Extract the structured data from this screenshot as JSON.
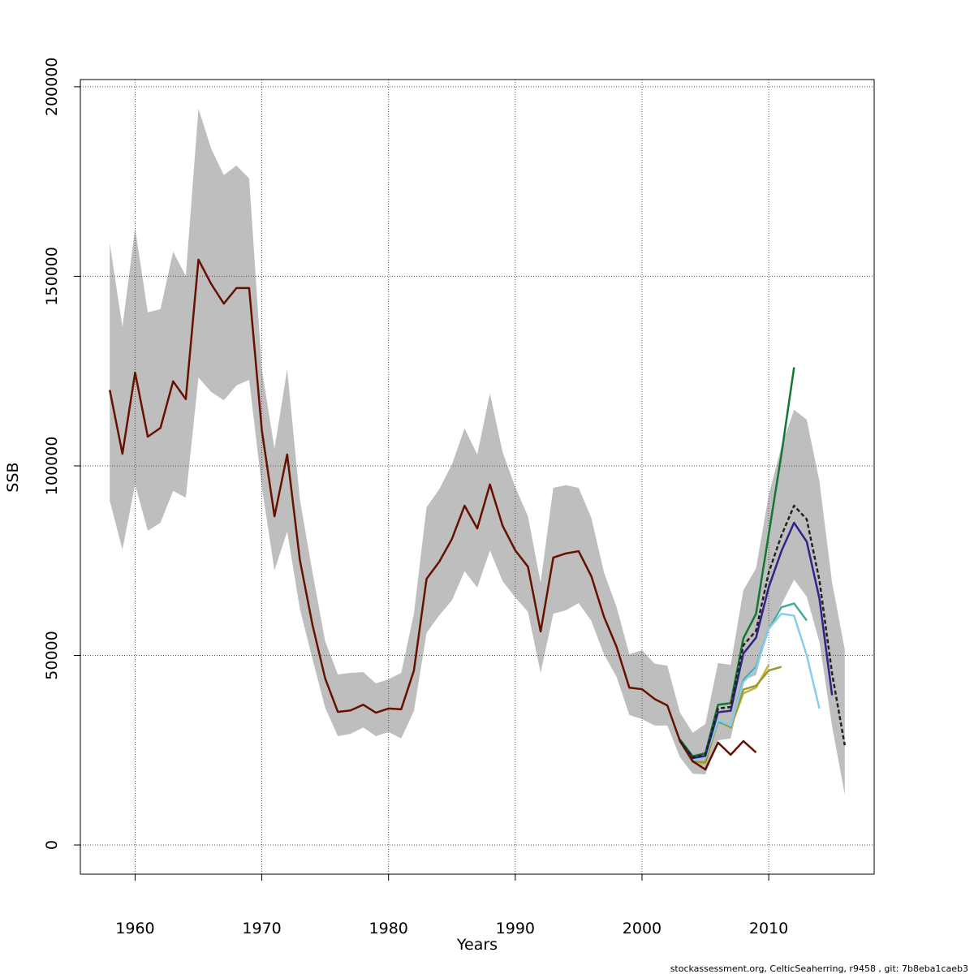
{
  "chart_data": {
    "type": "line",
    "xlabel": "Years",
    "ylabel": "SSB",
    "footnote": "stockassessment.org, CelticSeaherring, r9458 , git: 7b8eba1caeb3",
    "xlim": [
      1955.68,
      2018.32
    ],
    "ylim": [
      -7700,
      201900
    ],
    "xticks": [
      1960,
      1970,
      1980,
      1990,
      2000,
      2010
    ],
    "yticks": [
      0,
      50000,
      100000,
      150000,
      200000
    ],
    "grid": true,
    "band": {
      "color": "#bebebe",
      "x": [
        1958,
        1959,
        1960,
        1961,
        1962,
        1963,
        1964,
        1965,
        1966,
        1967,
        1968,
        1969,
        1970,
        1971,
        1972,
        1973,
        1974,
        1975,
        1976,
        1977,
        1978,
        1979,
        1980,
        1981,
        1982,
        1983,
        1984,
        1985,
        1986,
        1987,
        1988,
        1989,
        1990,
        1991,
        1992,
        1993,
        1994,
        1995,
        1996,
        1997,
        1998,
        1999,
        2000,
        2001,
        2002,
        2003,
        2004,
        2005,
        2006,
        2007,
        2008,
        2009,
        2010,
        2011,
        2012,
        2013,
        2014,
        2015,
        2016
      ],
      "upper": [
        158700,
        136600,
        162700,
        140500,
        141300,
        156500,
        150100,
        194200,
        183700,
        176700,
        179200,
        175800,
        125500,
        104500,
        125500,
        91200,
        71900,
        53700,
        45000,
        45400,
        45600,
        42600,
        43700,
        45400,
        61000,
        89100,
        93800,
        100400,
        109900,
        103000,
        119100,
        103600,
        94400,
        86700,
        69200,
        94200,
        94900,
        94200,
        86300,
        71900,
        62700,
        50300,
        51400,
        47800,
        47300,
        34900,
        29600,
        31900,
        48000,
        47500,
        67200,
        73000,
        92300,
        105100,
        114800,
        112200,
        95900,
        69200,
        51600
      ],
      "lower": [
        90800,
        77900,
        95100,
        82900,
        85000,
        93400,
        91600,
        123300,
        119500,
        117300,
        121200,
        122700,
        94400,
        72400,
        82700,
        62300,
        49000,
        36200,
        28700,
        29300,
        31000,
        28700,
        29800,
        28100,
        35300,
        55900,
        60600,
        64500,
        72200,
        67900,
        77700,
        69600,
        65300,
        61500,
        45400,
        61000,
        61900,
        63800,
        59100,
        50300,
        44300,
        34300,
        33200,
        31500,
        31500,
        23100,
        18800,
        18600,
        27600,
        28100,
        43500,
        44800,
        57600,
        63400,
        70000,
        65500,
        53500,
        31300,
        13300
      ]
    },
    "series": [
      {
        "color": "#c9b33a",
        "x": [
          2003,
          2004,
          2005,
          2006,
          2007,
          2008,
          2009,
          2010
        ],
        "values": [
          27400,
          21800,
          21500,
          32500,
          31000,
          40000,
          41500,
          47500
        ]
      },
      {
        "color": "#999933",
        "x": [
          2003,
          2004,
          2005,
          2006,
          2007,
          2008,
          2009,
          2010,
          2011
        ],
        "values": [
          27400,
          22000,
          21800,
          33000,
          31000,
          41000,
          42000,
          46000,
          47000
        ]
      },
      {
        "color": "#117733",
        "x": [
          2003,
          2004,
          2005,
          2006,
          2007,
          2008,
          2009,
          2010,
          2011,
          2012
        ],
        "values": [
          27800,
          23400,
          24200,
          37000,
          37400,
          54500,
          61000,
          82000,
          103000,
          126000
        ]
      },
      {
        "color": "#44aa99",
        "x": [
          2003,
          2004,
          2005,
          2006,
          2007,
          2008,
          2009,
          2010,
          2011,
          2012,
          2013
        ],
        "values": [
          27400,
          22800,
          23500,
          32500,
          31500,
          43500,
          47000,
          57000,
          62700,
          63700,
          59200
        ]
      },
      {
        "color": "#88ccee",
        "x": [
          2003,
          2004,
          2005,
          2006,
          2007,
          2008,
          2009,
          2010,
          2011,
          2012,
          2013,
          2014
        ],
        "values": [
          27400,
          22500,
          23000,
          33000,
          31500,
          43000,
          46500,
          57000,
          61000,
          60500,
          50000,
          36000
        ]
      },
      {
        "color": "#332288",
        "x": [
          2003,
          2004,
          2005,
          2006,
          2007,
          2008,
          2009,
          2010,
          2011,
          2012,
          2013,
          2014,
          2015
        ],
        "values": [
          27400,
          22900,
          23500,
          35000,
          35400,
          50500,
          54700,
          68000,
          77500,
          85000,
          80000,
          65000,
          39500
        ]
      },
      {
        "color": "#661100",
        "x": [
          1958,
          1959,
          1960,
          1961,
          1962,
          1963,
          1964,
          1965,
          1966,
          1967,
          1968,
          1969,
          1970,
          1971,
          1972,
          1973,
          1974,
          1975,
          1976,
          1977,
          1978,
          1979,
          1980,
          1981,
          1982,
          1983,
          1984,
          1985,
          1986,
          1987,
          1988,
          1989,
          1990,
          1991,
          1992,
          1993,
          1994,
          1995,
          1996,
          1997,
          1998,
          1999,
          2000,
          2001,
          2002,
          2003,
          2004,
          2005,
          2006,
          2007,
          2008,
          2009
        ],
        "values": [
          120000,
          103200,
          124600,
          107700,
          110000,
          122300,
          117600,
          154400,
          148000,
          142800,
          146900,
          146900,
          109400,
          86700,
          103000,
          75200,
          58000,
          43900,
          35100,
          35500,
          37000,
          34900,
          36000,
          35800,
          46000,
          70200,
          74700,
          80700,
          89500,
          83500,
          95100,
          84200,
          77700,
          73400,
          56300,
          75800,
          76900,
          77500,
          70900,
          60200,
          52200,
          41500,
          41100,
          38500,
          36800,
          27400,
          22100,
          19900,
          27000,
          23800,
          27400,
          24400
        ]
      },
      {
        "color": "#222222",
        "linestyle": "dashed",
        "x": [
          2003,
          2004,
          2005,
          2006,
          2007,
          2008,
          2009,
          2010,
          2011,
          2012,
          2013,
          2014,
          2015,
          2016
        ],
        "values": [
          27400,
          23100,
          23800,
          36000,
          36400,
          52700,
          56500,
          71900,
          81600,
          89500,
          85900,
          69800,
          45200,
          26300
        ]
      }
    ]
  }
}
